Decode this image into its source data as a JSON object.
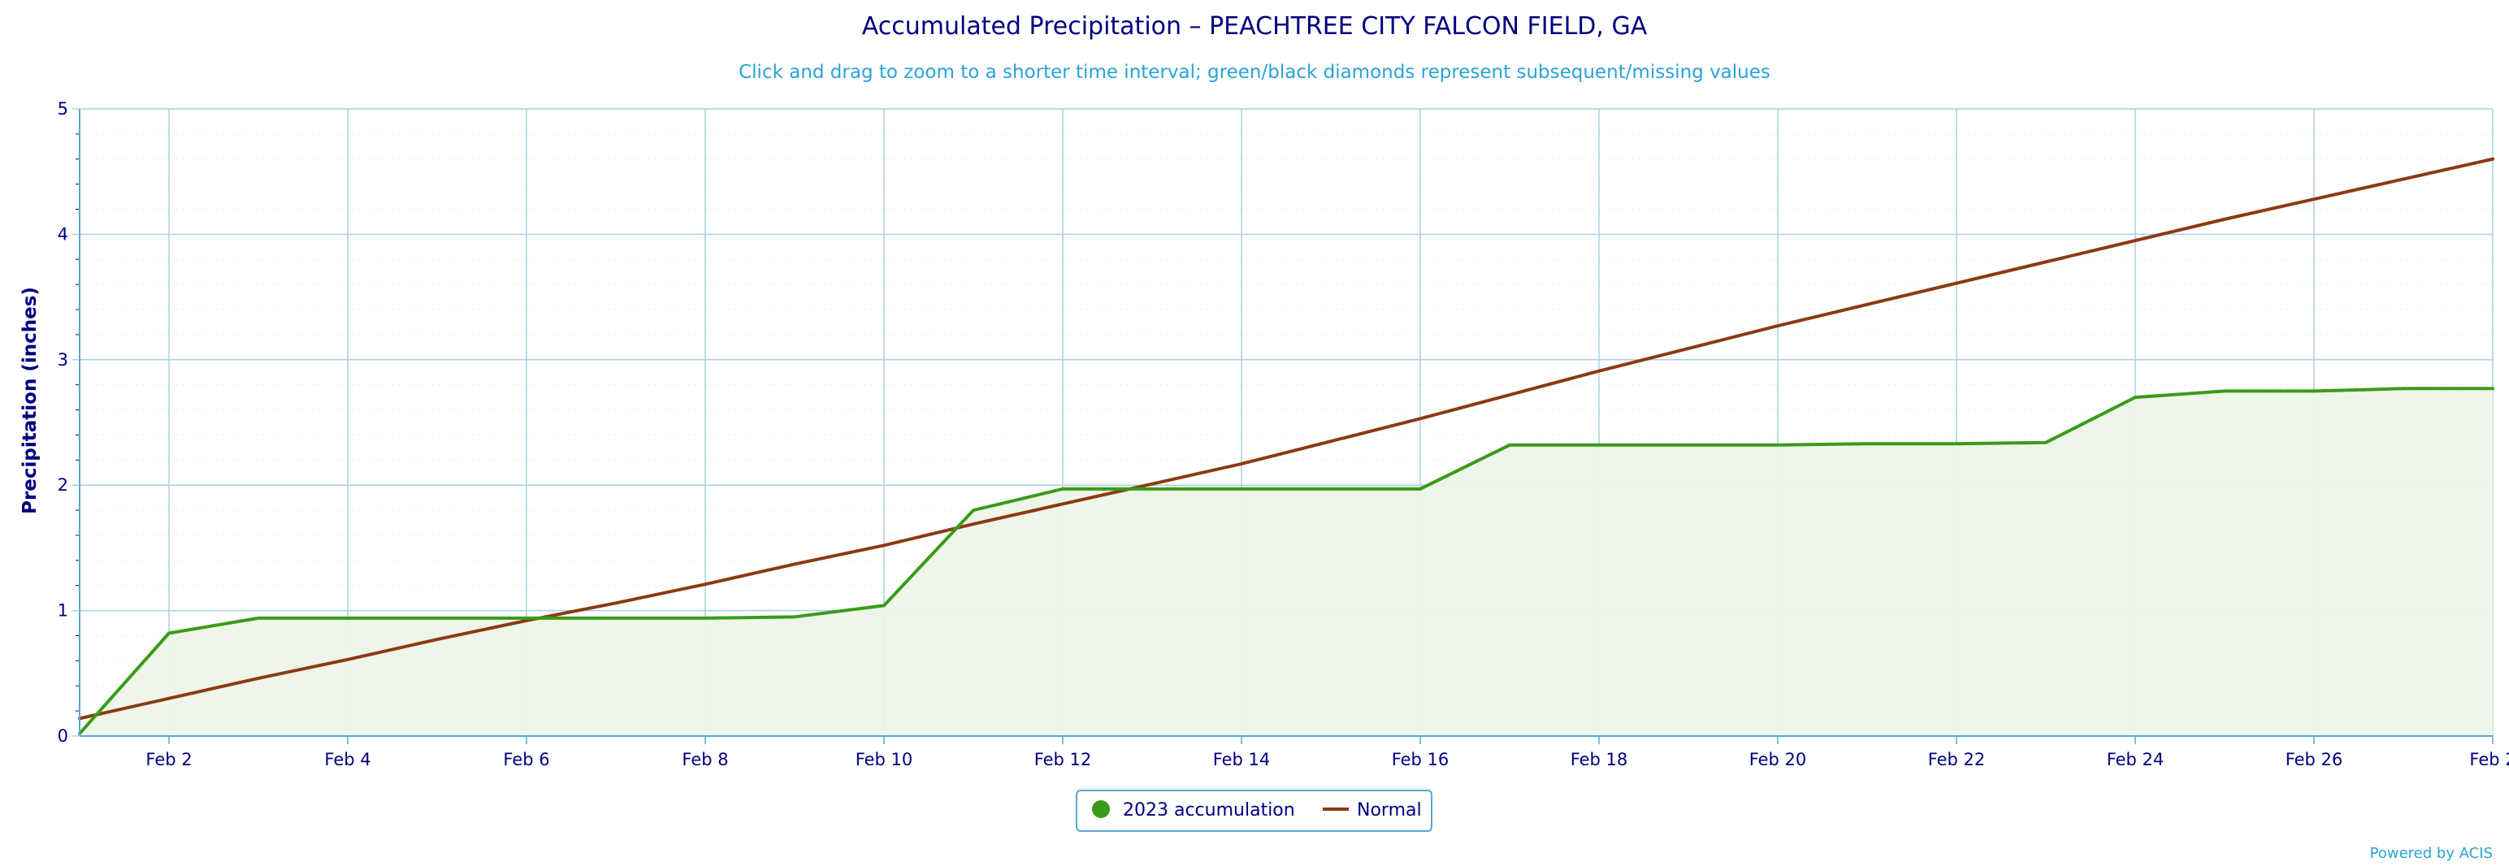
{
  "chart_data": {
    "type": "line",
    "title": "Accumulated Precipitation – PEACHTREE CITY FALCON FIELD, GA",
    "subtitle": "Click and drag to zoom to a shorter time interval; green/black diamonds represent subsequent/missing values",
    "ylabel": "Precipitation (inches)",
    "xlabel": "",
    "ylim": [
      0,
      5
    ],
    "xlim": [
      1,
      28
    ],
    "yticks": [
      0,
      1,
      2,
      3,
      4,
      5
    ],
    "ytick_labels": [
      "0",
      "1",
      "2",
      "3",
      "4",
      "5"
    ],
    "xticks": [
      2,
      4,
      6,
      8,
      10,
      12,
      14,
      16,
      18,
      20,
      22,
      24,
      26,
      28
    ],
    "xtick_labels": [
      "Feb 2",
      "Feb 4",
      "Feb 6",
      "Feb 8",
      "Feb 10",
      "Feb 12",
      "Feb 14",
      "Feb 16",
      "Feb 18",
      "Feb 20",
      "Feb 22",
      "Feb 24",
      "Feb 26",
      "Feb 2"
    ],
    "x": [
      1,
      2,
      3,
      4,
      5,
      6,
      7,
      8,
      9,
      10,
      11,
      12,
      13,
      14,
      15,
      16,
      17,
      18,
      19,
      20,
      21,
      22,
      23,
      24,
      25,
      26,
      27,
      28
    ],
    "grid": true,
    "legend_position": "bottom-center",
    "series": [
      {
        "name": "2023 accumulation",
        "color": "#3a9b1a",
        "fill": "#edf5e8",
        "values": [
          0.02,
          0.82,
          0.94,
          0.94,
          0.94,
          0.94,
          0.94,
          0.94,
          0.95,
          1.04,
          1.8,
          1.97,
          1.97,
          1.97,
          1.97,
          1.97,
          2.32,
          2.32,
          2.32,
          2.32,
          2.33,
          2.33,
          2.34,
          2.7,
          2.75,
          2.75,
          2.77,
          2.77
        ]
      },
      {
        "name": "Normal",
        "color": "#8b3a12",
        "values": [
          0.14,
          0.3,
          0.46,
          0.61,
          0.77,
          0.92,
          1.06,
          1.21,
          1.37,
          1.52,
          1.69,
          1.85,
          2.01,
          2.17,
          2.35,
          2.53,
          2.72,
          2.91,
          3.09,
          3.27,
          3.44,
          3.61,
          3.78,
          3.95,
          4.12,
          4.28,
          4.44,
          4.6
        ]
      }
    ]
  },
  "credit": "Powered by ACIS",
  "colors": {
    "grid": "#a8d0e3",
    "minor_grid": "#e4eef3",
    "axis": "#5aa8d0",
    "text": "#000080",
    "legend_border": "#5aa8d0"
  }
}
